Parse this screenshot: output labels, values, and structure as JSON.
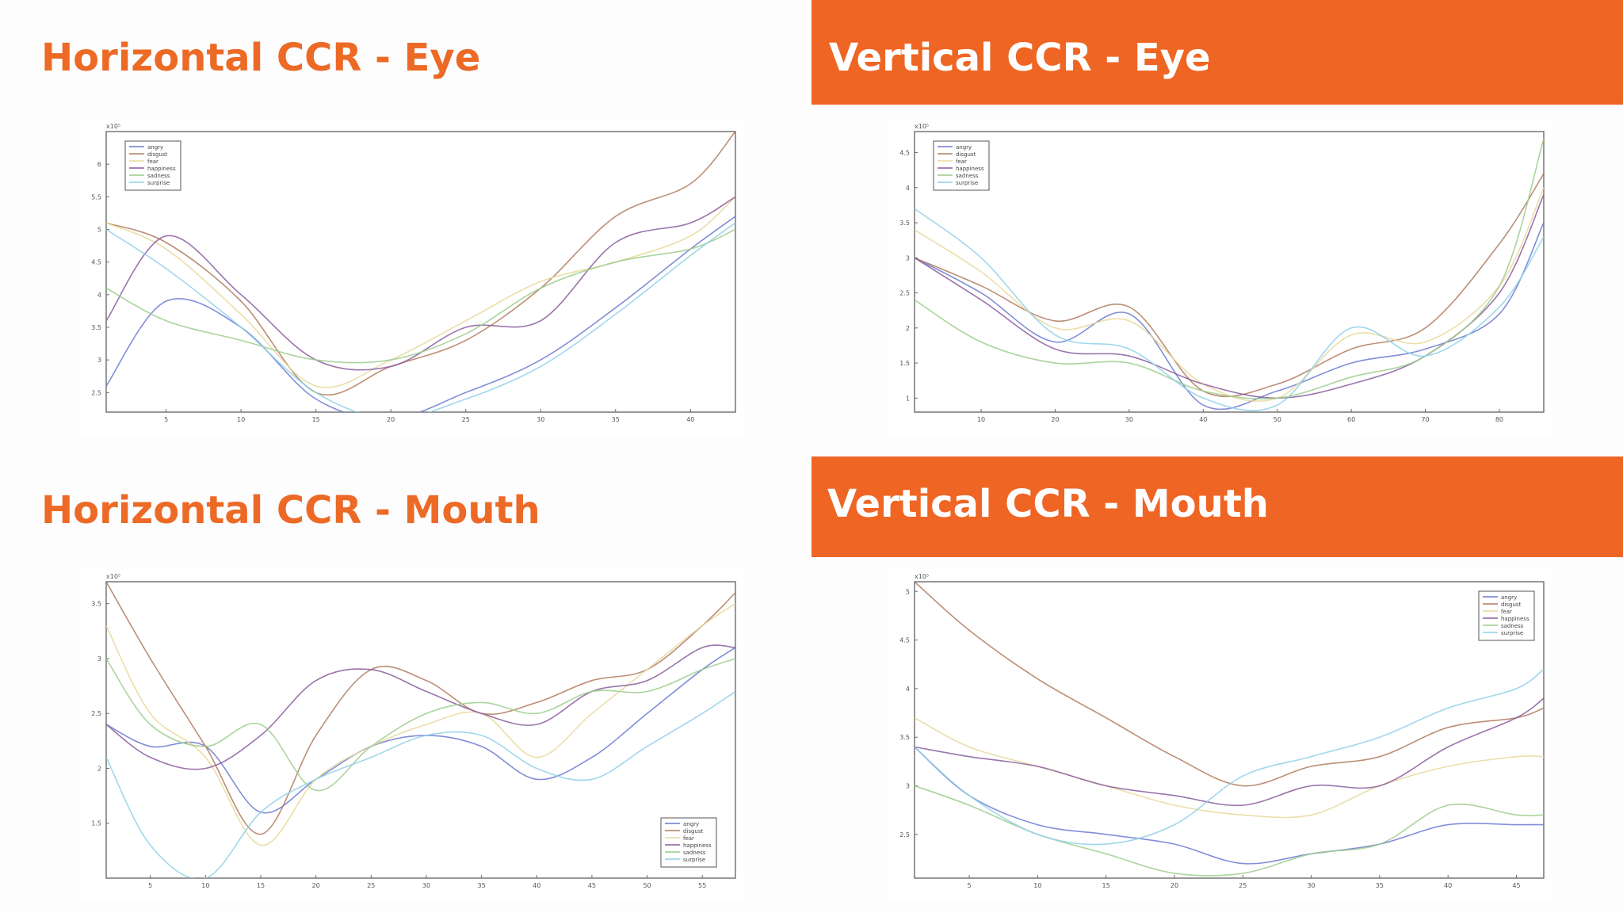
{
  "colors": {
    "accent": "#ef6524",
    "accent_text": "#ec6a26",
    "series": [
      "#6b7ad1",
      "#b07a5e",
      "#e8d89a",
      "#8a5c9e",
      "#9ccc8c",
      "#8fd0e8"
    ]
  },
  "chart_data": [
    {
      "type": "line",
      "title": "Horizontal CCR - Eye",
      "exponent_label": "x10⁵",
      "xlabel": "",
      "ylabel": "",
      "xlim": [
        1,
        43
      ],
      "ylim": [
        2.2,
        6.5
      ],
      "xticks": [
        5,
        10,
        15,
        20,
        25,
        30,
        35,
        40
      ],
      "yticks": [
        2.5,
        3,
        3.5,
        4,
        4.5,
        5,
        5.5,
        6
      ],
      "legend": {
        "position": "top-left",
        "entries": [
          "angry",
          "disgust",
          "fear",
          "happiness",
          "sadness",
          "surprise"
        ]
      },
      "x": [
        1,
        5,
        10,
        15,
        20,
        25,
        30,
        35,
        40,
        43
      ],
      "series": [
        {
          "name": "angry",
          "values": [
            2.6,
            3.9,
            3.5,
            2.4,
            2.1,
            2.5,
            3.0,
            3.8,
            4.7,
            5.2
          ]
        },
        {
          "name": "disgust",
          "values": [
            5.1,
            4.8,
            3.9,
            2.5,
            2.9,
            3.3,
            4.1,
            5.2,
            5.7,
            6.5
          ]
        },
        {
          "name": "fear",
          "values": [
            5.1,
            4.7,
            3.7,
            2.6,
            3.0,
            3.6,
            4.2,
            4.5,
            4.9,
            5.5
          ]
        },
        {
          "name": "happiness",
          "values": [
            3.6,
            4.9,
            4.0,
            3.0,
            2.9,
            3.5,
            3.6,
            4.8,
            5.1,
            5.5
          ]
        },
        {
          "name": "sadness",
          "values": [
            4.1,
            3.6,
            3.3,
            3.0,
            3.0,
            3.4,
            4.1,
            4.5,
            4.7,
            5.0
          ]
        },
        {
          "name": "surprise",
          "values": [
            5.0,
            4.4,
            3.5,
            2.5,
            2.1,
            2.4,
            2.9,
            3.7,
            4.6,
            5.1
          ]
        }
      ]
    },
    {
      "type": "line",
      "title": "Vertical CCR - Eye",
      "exponent_label": "x10⁵",
      "xlabel": "",
      "ylabel": "",
      "xlim": [
        1,
        86
      ],
      "ylim": [
        0.8,
        4.8
      ],
      "xticks": [
        10,
        20,
        30,
        40,
        50,
        60,
        70,
        80
      ],
      "yticks": [
        1,
        1.5,
        2,
        2.5,
        3,
        3.5,
        4,
        4.5
      ],
      "legend": {
        "position": "top-left",
        "entries": [
          "angry",
          "disgust",
          "fear",
          "happiness",
          "sadness",
          "surprise"
        ]
      },
      "x": [
        1,
        10,
        20,
        30,
        40,
        50,
        60,
        70,
        80,
        86
      ],
      "series": [
        {
          "name": "angry",
          "values": [
            3.0,
            2.5,
            1.8,
            2.2,
            0.9,
            1.1,
            1.5,
            1.7,
            2.2,
            3.5
          ]
        },
        {
          "name": "disgust",
          "values": [
            3.0,
            2.6,
            2.1,
            2.3,
            1.1,
            1.2,
            1.7,
            2.0,
            3.2,
            4.2
          ]
        },
        {
          "name": "fear",
          "values": [
            3.4,
            2.8,
            2.0,
            2.1,
            1.2,
            1.0,
            1.9,
            1.8,
            2.6,
            4.0
          ]
        },
        {
          "name": "happiness",
          "values": [
            3.0,
            2.4,
            1.7,
            1.6,
            1.2,
            1.0,
            1.2,
            1.6,
            2.5,
            3.9
          ]
        },
        {
          "name": "sadness",
          "values": [
            2.4,
            1.8,
            1.5,
            1.5,
            1.1,
            1.0,
            1.3,
            1.6,
            2.6,
            4.7
          ]
        },
        {
          "name": "surprise",
          "values": [
            3.7,
            3.0,
            1.9,
            1.7,
            1.0,
            0.9,
            2.0,
            1.6,
            2.3,
            3.3
          ]
        }
      ]
    },
    {
      "type": "line",
      "title": "Horizontal CCR - Mouth",
      "exponent_label": "x10⁵",
      "xlabel": "",
      "ylabel": "",
      "xlim": [
        1,
        58
      ],
      "ylim": [
        1.0,
        3.7
      ],
      "xticks": [
        5,
        10,
        15,
        20,
        25,
        30,
        35,
        40,
        45,
        50,
        55
      ],
      "yticks": [
        1.5,
        2,
        2.5,
        3,
        3.5
      ],
      "legend": {
        "position": "bottom-right",
        "entries": [
          "angry",
          "disgust",
          "fear",
          "happiness",
          "sadness",
          "surprise"
        ]
      },
      "x": [
        1,
        5,
        10,
        15,
        20,
        25,
        30,
        35,
        40,
        45,
        50,
        55,
        58
      ],
      "series": [
        {
          "name": "angry",
          "values": [
            2.4,
            2.2,
            2.2,
            1.6,
            1.9,
            2.2,
            2.3,
            2.2,
            1.9,
            2.1,
            2.5,
            2.9,
            3.1
          ]
        },
        {
          "name": "disgust",
          "values": [
            3.7,
            3.0,
            2.2,
            1.4,
            2.3,
            2.9,
            2.8,
            2.5,
            2.6,
            2.8,
            2.9,
            3.3,
            3.6
          ]
        },
        {
          "name": "fear",
          "values": [
            3.3,
            2.5,
            2.1,
            1.3,
            1.9,
            2.2,
            2.4,
            2.5,
            2.1,
            2.5,
            2.9,
            3.3,
            3.5
          ]
        },
        {
          "name": "happiness",
          "values": [
            2.4,
            2.1,
            2.0,
            2.3,
            2.8,
            2.9,
            2.7,
            2.5,
            2.4,
            2.7,
            2.8,
            3.1,
            3.1
          ]
        },
        {
          "name": "sadness",
          "values": [
            3.0,
            2.4,
            2.2,
            2.4,
            1.8,
            2.2,
            2.5,
            2.6,
            2.5,
            2.7,
            2.7,
            2.9,
            3.0
          ]
        },
        {
          "name": "surprise",
          "values": [
            2.1,
            1.3,
            1.0,
            1.6,
            1.9,
            2.1,
            2.3,
            2.3,
            2.0,
            1.9,
            2.2,
            2.5,
            2.7
          ]
        }
      ]
    },
    {
      "type": "line",
      "title": "Vertical CCR - Mouth",
      "exponent_label": "x10⁵",
      "xlabel": "",
      "ylabel": "",
      "xlim": [
        1,
        47
      ],
      "ylim": [
        2.05,
        5.1
      ],
      "xticks": [
        5,
        10,
        15,
        20,
        25,
        30,
        35,
        40,
        45
      ],
      "yticks": [
        2.5,
        3,
        3.5,
        4,
        4.5,
        5
      ],
      "legend": {
        "position": "top-right",
        "entries": [
          "angry",
          "disgust",
          "fear",
          "happiness",
          "sadness",
          "surprise"
        ]
      },
      "x": [
        1,
        5,
        10,
        15,
        20,
        25,
        30,
        35,
        40,
        45,
        47
      ],
      "series": [
        {
          "name": "angry",
          "values": [
            3.4,
            2.9,
            2.6,
            2.5,
            2.4,
            2.2,
            2.3,
            2.4,
            2.6,
            2.6,
            2.6
          ]
        },
        {
          "name": "disgust",
          "values": [
            5.1,
            4.6,
            4.1,
            3.7,
            3.3,
            3.0,
            3.2,
            3.3,
            3.6,
            3.7,
            3.8
          ]
        },
        {
          "name": "fear",
          "values": [
            3.7,
            3.4,
            3.2,
            3.0,
            2.8,
            2.7,
            2.7,
            3.0,
            3.2,
            3.3,
            3.3
          ]
        },
        {
          "name": "happiness",
          "values": [
            3.4,
            3.3,
            3.2,
            3.0,
            2.9,
            2.8,
            3.0,
            3.0,
            3.4,
            3.7,
            3.9
          ]
        },
        {
          "name": "sadness",
          "values": [
            3.0,
            2.8,
            2.5,
            2.3,
            2.1,
            2.1,
            2.3,
            2.4,
            2.8,
            2.7,
            2.7
          ]
        },
        {
          "name": "surprise",
          "values": [
            3.4,
            2.9,
            2.5,
            2.4,
            2.6,
            3.1,
            3.3,
            3.5,
            3.8,
            4.0,
            4.2
          ]
        }
      ]
    }
  ]
}
